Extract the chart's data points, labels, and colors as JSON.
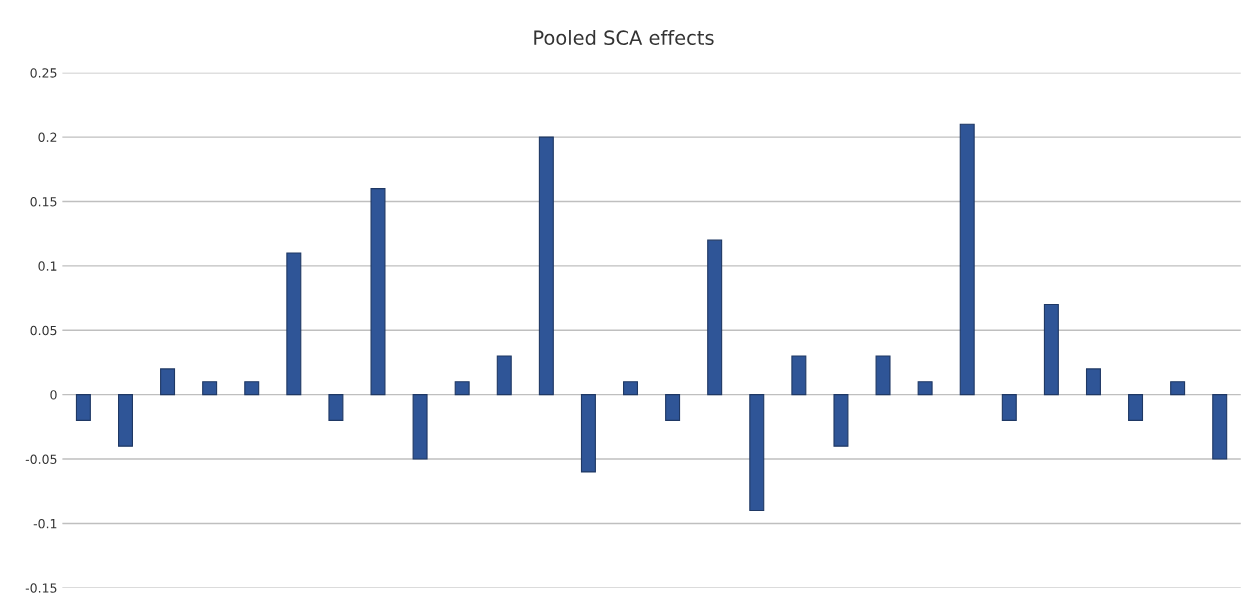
{
  "chart_data": {
    "type": "bar",
    "title": "Pooled SCA effects",
    "categories": [
      null,
      null,
      null,
      null,
      null,
      null,
      null,
      null,
      null,
      null,
      null,
      null,
      null,
      null,
      null,
      null,
      null,
      null,
      null,
      null,
      null,
      null,
      null,
      null,
      null,
      null,
      null,
      null
    ],
    "values": [
      -0.02,
      -0.04,
      0.02,
      0.01,
      0.01,
      0.11,
      -0.02,
      0.16,
      -0.05,
      0.01,
      0.03,
      0.2,
      -0.06,
      0.01,
      -0.02,
      0.12,
      -0.09,
      0.03,
      -0.04,
      0.03,
      0.01,
      0.21,
      -0.02,
      0.07,
      0.02,
      -0.02,
      0.01,
      -0.05
    ],
    "color": "#2f5597",
    "ylim": [
      -0.15,
      0.25
    ],
    "yticks": [
      0.25,
      0.2,
      0.15,
      0.1,
      0.05,
      0,
      -0.05,
      -0.1,
      -0.15
    ],
    "grid": "y",
    "legend": false,
    "tick_labels": "y"
  }
}
